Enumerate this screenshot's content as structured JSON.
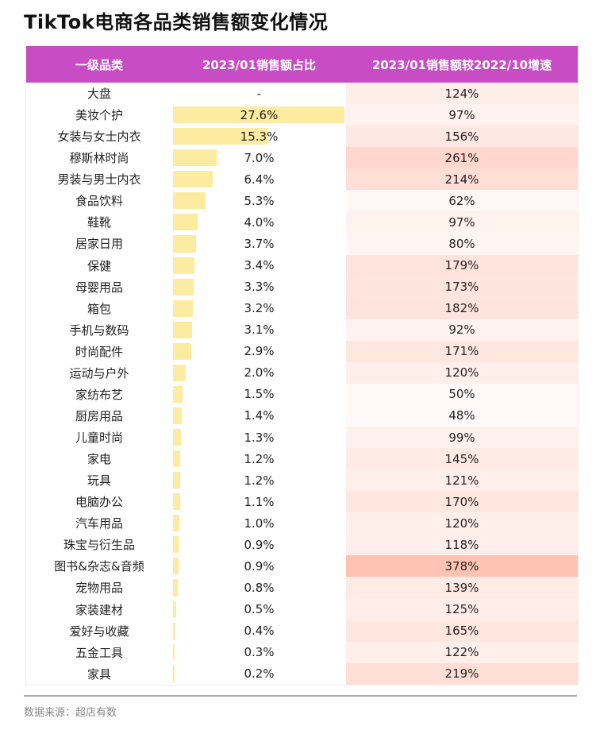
{
  "title": "TikTok电商各品类销售额变化情况",
  "source": "数据来源：超店有数",
  "colors": {
    "header": "#c84dc4",
    "bar": "#fdeba2",
    "growth_low": "#fffaf9",
    "growth_high": "#ffc3b3"
  },
  "chart_data": {
    "type": "table",
    "columns": [
      "一级品类",
      "2023/01销售额占比",
      "2023/01销售额较2022/10增速"
    ],
    "rows": [
      {
        "category": "大盘",
        "share": "-",
        "growth": "124%"
      },
      {
        "category": "美妆个护",
        "share": "27.6%",
        "growth": "97%"
      },
      {
        "category": "女装与女士内衣",
        "share": "15.3%",
        "growth": "156%"
      },
      {
        "category": "穆斯林时尚",
        "share": "7.0%",
        "growth": "261%"
      },
      {
        "category": "男装与男士内衣",
        "share": "6.4%",
        "growth": "214%"
      },
      {
        "category": "食品饮料",
        "share": "5.3%",
        "growth": "62%"
      },
      {
        "category": "鞋靴",
        "share": "4.0%",
        "growth": "97%"
      },
      {
        "category": "居家日用",
        "share": "3.7%",
        "growth": "80%"
      },
      {
        "category": "保健",
        "share": "3.4%",
        "growth": "179%"
      },
      {
        "category": "母婴用品",
        "share": "3.3%",
        "growth": "173%"
      },
      {
        "category": "箱包",
        "share": "3.2%",
        "growth": "182%"
      },
      {
        "category": "手机与数码",
        "share": "3.1%",
        "growth": "92%"
      },
      {
        "category": "时尚配件",
        "share": "2.9%",
        "growth": "171%"
      },
      {
        "category": "运动与户外",
        "share": "2.0%",
        "growth": "120%"
      },
      {
        "category": "家纺布艺",
        "share": "1.5%",
        "growth": "50%"
      },
      {
        "category": "厨房用品",
        "share": "1.4%",
        "growth": "48%"
      },
      {
        "category": "儿童时尚",
        "share": "1.3%",
        "growth": "99%"
      },
      {
        "category": "家电",
        "share": "1.2%",
        "growth": "145%"
      },
      {
        "category": "玩具",
        "share": "1.2%",
        "growth": "121%"
      },
      {
        "category": "电脑办公",
        "share": "1.1%",
        "growth": "170%"
      },
      {
        "category": "汽车用品",
        "share": "1.0%",
        "growth": "120%"
      },
      {
        "category": "珠宝与衍生品",
        "share": "0.9%",
        "growth": "118%"
      },
      {
        "category": "图书&杂志&音频",
        "share": "0.9%",
        "growth": "378%"
      },
      {
        "category": "宠物用品",
        "share": "0.8%",
        "growth": "139%"
      },
      {
        "category": "家装建材",
        "share": "0.5%",
        "growth": "125%"
      },
      {
        "category": "爱好与收藏",
        "share": "0.4%",
        "growth": "165%"
      },
      {
        "category": "五金工具",
        "share": "0.3%",
        "growth": "122%"
      },
      {
        "category": "家具",
        "share": "0.2%",
        "growth": "219%"
      }
    ]
  }
}
